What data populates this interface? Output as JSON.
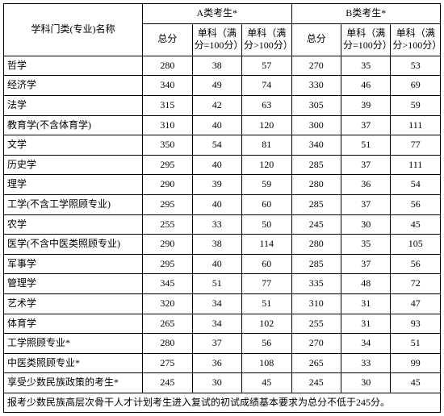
{
  "headers": {
    "name": "学科门类(专业)名称",
    "groupA": "A类考生*",
    "groupB": "B类考生*",
    "total": "总分",
    "sub100": "单科（满分=100分）",
    "subOver100": "单科（满分>100分）"
  },
  "rows": [
    {
      "name": "哲学",
      "a_total": "280",
      "a_s1": "38",
      "a_s2": "57",
      "b_total": "270",
      "b_s1": "35",
      "b_s2": "53"
    },
    {
      "name": "经济学",
      "a_total": "340",
      "a_s1": "49",
      "a_s2": "74",
      "b_total": "330",
      "b_s1": "46",
      "b_s2": "69"
    },
    {
      "name": "法学",
      "a_total": "315",
      "a_s1": "42",
      "a_s2": "63",
      "b_total": "305",
      "b_s1": "39",
      "b_s2": "59"
    },
    {
      "name": "教育学(不含体育学)",
      "a_total": "310",
      "a_s1": "40",
      "a_s2": "120",
      "b_total": "300",
      "b_s1": "37",
      "b_s2": "111"
    },
    {
      "name": "文学",
      "a_total": "350",
      "a_s1": "54",
      "a_s2": "81",
      "b_total": "340",
      "b_s1": "51",
      "b_s2": "77"
    },
    {
      "name": "历史学",
      "a_total": "295",
      "a_s1": "40",
      "a_s2": "120",
      "b_total": "285",
      "b_s1": "37",
      "b_s2": "111"
    },
    {
      "name": "理学",
      "a_total": "290",
      "a_s1": "39",
      "a_s2": "59",
      "b_total": "280",
      "b_s1": "36",
      "b_s2": "54"
    },
    {
      "name": "工学(不含工学照顾专业)",
      "a_total": "295",
      "a_s1": "40",
      "a_s2": "60",
      "b_total": "285",
      "b_s1": "37",
      "b_s2": "56"
    },
    {
      "name": "农学",
      "a_total": "255",
      "a_s1": "33",
      "a_s2": "50",
      "b_total": "245",
      "b_s1": "30",
      "b_s2": "45"
    },
    {
      "name": "医学(不含中医类照顾专业)",
      "a_total": "290",
      "a_s1": "38",
      "a_s2": "114",
      "b_total": "280",
      "b_s1": "35",
      "b_s2": "105"
    },
    {
      "name": "军事学",
      "a_total": "295",
      "a_s1": "40",
      "a_s2": "60",
      "b_total": "285",
      "b_s1": "37",
      "b_s2": "56"
    },
    {
      "name": "管理学",
      "a_total": "345",
      "a_s1": "51",
      "a_s2": "77",
      "b_total": "335",
      "b_s1": "48",
      "b_s2": "72"
    },
    {
      "name": "艺术学",
      "a_total": "320",
      "a_s1": "34",
      "a_s2": "51",
      "b_total": "310",
      "b_s1": "31",
      "b_s2": "47"
    },
    {
      "name": "体育学",
      "a_total": "265",
      "a_s1": "34",
      "a_s2": "102",
      "b_total": "255",
      "b_s1": "31",
      "b_s2": "93"
    },
    {
      "name": "工学照顾专业*",
      "a_total": "280",
      "a_s1": "37",
      "a_s2": "56",
      "b_total": "270",
      "b_s1": "34",
      "b_s2": "51"
    },
    {
      "name": "中医类照顾专业*",
      "a_total": "275",
      "a_s1": "36",
      "a_s2": "108",
      "b_total": "265",
      "b_s1": "33",
      "b_s2": "99"
    },
    {
      "name": "享受少数民族政策的考生*",
      "a_total": "245",
      "a_s1": "30",
      "a_s2": "45",
      "b_total": "245",
      "b_s1": "30",
      "b_s2": "45"
    }
  ],
  "footer": "报考少数民族高层次骨干人才计划考生进入复试的初试成绩基本要求为总分不低于245分。"
}
